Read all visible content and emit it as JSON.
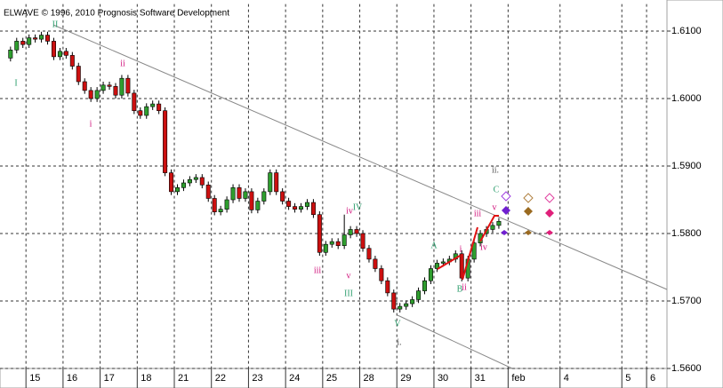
{
  "chart_data": {
    "type": "candlestick",
    "title": "ELWAVE © 1996, 2010 Prognosis Software Development",
    "up_color": "#2e9e2e",
    "down_color": "#cc1010",
    "grid": true,
    "xlim": [
      -1.7,
      106.2
    ],
    "xticks": [
      {
        "value": 2.5,
        "label": "15"
      },
      {
        "value": 8.5,
        "label": "16"
      },
      {
        "value": 14.5,
        "label": "17"
      },
      {
        "value": 20.5,
        "label": "18"
      },
      {
        "value": 26.5,
        "label": "21"
      },
      {
        "value": 32.5,
        "label": "22"
      },
      {
        "value": 38.5,
        "label": "23"
      },
      {
        "value": 44.5,
        "label": "24"
      },
      {
        "value": 50.5,
        "label": "25"
      },
      {
        "value": 56.5,
        "label": "28"
      },
      {
        "value": 62.5,
        "label": "29"
      },
      {
        "value": 68.5,
        "label": "30"
      },
      {
        "value": 74.5,
        "label": "31"
      },
      {
        "value": 80.5,
        "label": "feb"
      },
      {
        "value": 88.9,
        "label": "4"
      },
      {
        "value": 98.9,
        "label": "5"
      },
      {
        "value": 102.9,
        "label": "6"
      }
    ],
    "ylim": [
      1.56,
      1.614
    ],
    "yticks": [
      {
        "value": 1.56,
        "label": "1.5600"
      },
      {
        "value": 1.57,
        "label": "1.5700"
      },
      {
        "value": 1.58,
        "label": "1.5800"
      },
      {
        "value": 1.59,
        "label": "1.5900"
      },
      {
        "value": 1.6,
        "label": "1.6000"
      },
      {
        "value": 1.61,
        "label": "1.6100"
      }
    ],
    "open": [
      1.606,
      1.6072,
      1.6085,
      1.608,
      1.609,
      1.6088,
      1.6094,
      1.6085,
      1.6062,
      1.607,
      1.6064,
      1.6048,
      1.6025,
      1.6012,
      1.6,
      1.6012,
      1.602,
      1.6018,
      1.6005,
      1.603,
      1.6008,
      1.5982,
      1.5975,
      1.5988,
      1.5992,
      1.5982,
      1.589,
      1.5862,
      1.5868,
      1.5875,
      1.588,
      1.5883,
      1.5872,
      1.5852,
      1.5832,
      1.5836,
      1.585,
      1.5868,
      1.5852,
      1.5862,
      1.5835,
      1.5848,
      1.5862,
      1.589,
      1.5862,
      1.5848,
      1.584,
      1.5836,
      1.584,
      1.5846,
      1.5828,
      1.5772,
      1.5784,
      1.5788,
      1.5782,
      1.5798,
      1.5806,
      1.58,
      1.5778,
      1.5762,
      1.5748,
      1.573,
      1.5712,
      1.5688,
      1.5692,
      1.5696,
      1.5702,
      1.5715,
      1.573,
      1.5748,
      1.5756,
      1.5758,
      1.5762,
      1.577,
      1.5734,
      1.5762,
      1.5786,
      1.58,
      1.5806,
      1.5812
    ],
    "high": [
      1.6077,
      1.609,
      1.609,
      1.6095,
      1.6095,
      1.6099,
      1.6099,
      1.609,
      1.6075,
      1.6075,
      1.6069,
      1.6053,
      1.603,
      1.6017,
      1.6017,
      1.6025,
      1.6025,
      1.6023,
      1.6035,
      1.6035,
      1.6013,
      1.5987,
      1.5993,
      1.5997,
      1.5997,
      1.5987,
      1.5895,
      1.5873,
      1.588,
      1.5885,
      1.5888,
      1.5888,
      1.5877,
      1.5857,
      1.5841,
      1.5855,
      1.5873,
      1.5873,
      1.5867,
      1.5867,
      1.5853,
      1.5867,
      1.5895,
      1.5895,
      1.5867,
      1.5853,
      1.5845,
      1.5845,
      1.5851,
      1.5851,
      1.5833,
      1.5789,
      1.5793,
      1.5793,
      1.5828,
      1.5811,
      1.5811,
      1.5805,
      1.5783,
      1.5767,
      1.5753,
      1.5735,
      1.5717,
      1.5697,
      1.5701,
      1.5707,
      1.572,
      1.5735,
      1.5753,
      1.5761,
      1.5763,
      1.5767,
      1.5775,
      1.5775,
      1.5767,
      1.5791,
      1.5805,
      1.5811,
      1.5817,
      1.5823
    ],
    "low": [
      1.6055,
      1.6067,
      1.6075,
      1.6075,
      1.6083,
      1.6083,
      1.608,
      1.6057,
      1.6057,
      1.6059,
      1.6043,
      1.602,
      1.6007,
      1.5995,
      1.5995,
      1.6007,
      1.6013,
      1.6,
      1.6,
      1.6003,
      1.5977,
      1.597,
      1.597,
      1.5983,
      1.5977,
      1.5885,
      1.5857,
      1.5857,
      1.5863,
      1.587,
      1.5875,
      1.5867,
      1.5847,
      1.5827,
      1.5827,
      1.5831,
      1.5845,
      1.5847,
      1.5847,
      1.583,
      1.583,
      1.5843,
      1.5857,
      1.5857,
      1.5843,
      1.5835,
      1.5831,
      1.5831,
      1.5835,
      1.5823,
      1.5767,
      1.5767,
      1.5779,
      1.5777,
      1.5777,
      1.5793,
      1.5795,
      1.5773,
      1.5757,
      1.5743,
      1.5725,
      1.5707,
      1.5683,
      1.5683,
      1.5687,
      1.5691,
      1.5697,
      1.571,
      1.5725,
      1.5743,
      1.5751,
      1.5753,
      1.5757,
      1.5729,
      1.5729,
      1.5757,
      1.5781,
      1.5795,
      1.5801,
      1.5807
    ],
    "close": [
      1.6072,
      1.6085,
      1.608,
      1.609,
      1.6088,
      1.6094,
      1.6085,
      1.6062,
      1.607,
      1.6064,
      1.6048,
      1.6025,
      1.6012,
      1.6,
      1.6012,
      1.602,
      1.6018,
      1.6005,
      1.603,
      1.6008,
      1.5982,
      1.5975,
      1.5988,
      1.5992,
      1.5982,
      1.589,
      1.5862,
      1.5868,
      1.5875,
      1.588,
      1.5883,
      1.5872,
      1.5852,
      1.5832,
      1.5836,
      1.585,
      1.5868,
      1.5852,
      1.5862,
      1.5835,
      1.5848,
      1.5862,
      1.589,
      1.5862,
      1.5848,
      1.584,
      1.5836,
      1.584,
      1.5846,
      1.5828,
      1.5772,
      1.5784,
      1.5788,
      1.5782,
      1.5798,
      1.5806,
      1.58,
      1.5778,
      1.5762,
      1.5748,
      1.573,
      1.5712,
      1.5688,
      1.5692,
      1.5696,
      1.5702,
      1.5715,
      1.573,
      1.5748,
      1.5756,
      1.5758,
      1.5762,
      1.577,
      1.5734,
      1.5762,
      1.5786,
      1.58,
      1.5806,
      1.5812,
      1.5818
    ],
    "annotations": [
      {
        "text": "I",
        "color": "#2e9e6e"
      },
      {
        "text": "II",
        "color": "#2e9e6e"
      },
      {
        "text": "i",
        "color": "#d0107a"
      },
      {
        "text": "ii",
        "color": "#d0107a"
      },
      {
        "text": "iii",
        "color": "#d0107a"
      },
      {
        "text": "iv",
        "color": "#d0107a"
      },
      {
        "text": "IV",
        "color": "#2e9e6e"
      },
      {
        "text": "v",
        "color": "#d0107a"
      },
      {
        "text": "III",
        "color": "#2e9e6e"
      },
      {
        "text": "V",
        "color": "#2e9e6e"
      },
      {
        "text": "i.",
        "color": "#555555"
      },
      {
        "text": "A",
        "color": "#2e9e6e"
      },
      {
        "text": "i",
        "color": "#d0107a"
      },
      {
        "text": "B",
        "color": "#2e9e6e"
      },
      {
        "text": "ii",
        "color": "#d0107a"
      },
      {
        "text": "iii",
        "color": "#d0107a"
      },
      {
        "text": "iv",
        "color": "#d0107a"
      },
      {
        "text": "v",
        "color": "#d0107a"
      },
      {
        "text": "C",
        "color": "#2e9e6e"
      },
      {
        "text": "ii.",
        "color": "#555555"
      }
    ]
  }
}
